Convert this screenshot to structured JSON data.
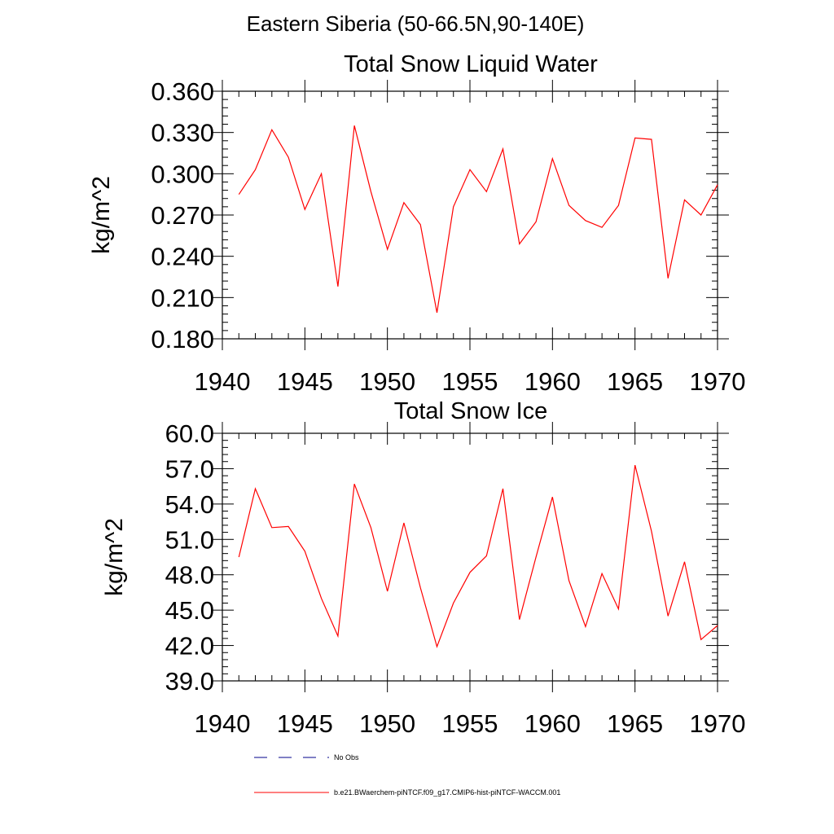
{
  "figure_title": "Eastern Siberia (50-66.5N,90-140E)",
  "colors": {
    "model": "#ff0000",
    "obs": "#00008b",
    "axis": "#000000"
  },
  "legend": [
    {
      "label": "No Obs",
      "style": "dashed",
      "color": "#00008b"
    },
    {
      "label": "b.e21.BWaerchem-piNTCF.f09_g17.CMIP6-hist-piNTCF-WACCM.001",
      "style": "solid",
      "color": "#ff0000"
    }
  ],
  "chart_data": [
    {
      "type": "line",
      "title": "Total Snow Liquid Water",
      "xlabel": "",
      "ylabel": "kg/m^2",
      "xlim": [
        1940,
        1970
      ],
      "ylim": [
        0.18,
        0.36
      ],
      "x_ticks": [
        "1940",
        "1945",
        "1950",
        "1955",
        "1960",
        "1965",
        "1970"
      ],
      "y_ticks": [
        "0.180",
        "0.210",
        "0.240",
        "0.270",
        "0.300",
        "0.330",
        "0.360"
      ],
      "grid": false,
      "x": [
        1941,
        1942,
        1943,
        1944,
        1945,
        1946,
        1947,
        1948,
        1949,
        1950,
        1951,
        1952,
        1953,
        1954,
        1955,
        1956,
        1957,
        1958,
        1959,
        1960,
        1961,
        1962,
        1963,
        1964,
        1965,
        1966,
        1967,
        1968,
        1969,
        1970
      ],
      "series": [
        {
          "values": [
            0.285,
            0.303,
            0.332,
            0.312,
            0.274,
            0.3,
            0.218,
            0.335,
            0.287,
            0.245,
            0.279,
            0.263,
            0.199,
            0.276,
            0.303,
            0.287,
            0.318,
            0.249,
            0.265,
            0.311,
            0.277,
            0.266,
            0.261,
            0.277,
            0.326,
            0.325,
            0.224,
            0.281,
            0.27,
            0.292
          ],
          "color": "#ff0000"
        }
      ]
    },
    {
      "type": "line",
      "title": "Total Snow Ice",
      "xlabel": "",
      "ylabel": "kg/m^2",
      "xlim": [
        1940,
        1970
      ],
      "ylim": [
        39.0,
        60.0
      ],
      "x_ticks": [
        "1940",
        "1945",
        "1950",
        "1955",
        "1960",
        "1965",
        "1970"
      ],
      "y_ticks": [
        "39.0",
        "42.0",
        "45.0",
        "48.0",
        "51.0",
        "54.0",
        "57.0",
        "60.0"
      ],
      "grid": false,
      "x": [
        1941,
        1942,
        1943,
        1944,
        1945,
        1946,
        1947,
        1948,
        1949,
        1950,
        1951,
        1952,
        1953,
        1954,
        1955,
        1956,
        1957,
        1958,
        1959,
        1960,
        1961,
        1962,
        1963,
        1964,
        1965,
        1966,
        1967,
        1968,
        1969,
        1970
      ],
      "series": [
        {
          "values": [
            49.5,
            55.3,
            52.0,
            52.1,
            50.0,
            46.0,
            42.8,
            55.7,
            52.0,
            46.6,
            52.4,
            46.9,
            41.9,
            45.6,
            48.2,
            49.6,
            55.3,
            44.2,
            49.5,
            54.6,
            47.5,
            43.6,
            48.1,
            45.1,
            57.3,
            51.7,
            44.5,
            49.1,
            42.5,
            43.7
          ],
          "color": "#ff0000"
        }
      ]
    }
  ]
}
